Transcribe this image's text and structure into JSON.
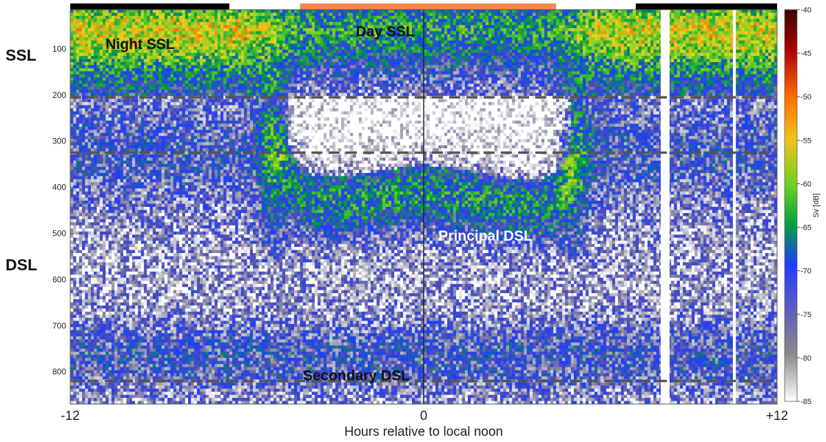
{
  "chart_data": {
    "type": "heatmap",
    "title": "",
    "xlabel": "Hours relative to local noon",
    "ylabel": "",
    "xlim": [
      -12,
      12
    ],
    "ylim": [
      870,
      15
    ],
    "x_ticks": [
      "-12",
      "0",
      "+12"
    ],
    "y_ticks": [
      100,
      200,
      300,
      400,
      500,
      600,
      700,
      800
    ],
    "colorbar": {
      "label": "Sv [dB]",
      "range": [
        -85,
        -40
      ],
      "ticks": [
        -40,
        -45,
        -50,
        -55,
        -60,
        -65,
        -70,
        -75,
        -80,
        -85
      ]
    },
    "reference_depths": [
      205,
      325,
      820
    ],
    "period_bars": [
      {
        "period": "night",
        "start": -12,
        "end": -6.6,
        "color": "#000000"
      },
      {
        "period": "day",
        "start": -4.2,
        "end": 4.5,
        "color": "#f4884c"
      },
      {
        "period": "night",
        "start": 7.2,
        "end": 12,
        "color": "#000000"
      }
    ],
    "layer_labels": [
      {
        "text": "SSL"
      },
      {
        "text": "DSL"
      },
      {
        "text": "Night SSL",
        "x": -10.8,
        "y": 90
      },
      {
        "text": "Day SSL",
        "x": -2.3,
        "y": 62
      },
      {
        "text": "Principal DSL",
        "x": 0.5,
        "y": 505
      },
      {
        "text": "Secondary DSL",
        "x": -4.1,
        "y": 808
      }
    ],
    "layers": [
      {
        "name": "SSL",
        "depth_top": 20,
        "depth_bottom": 200
      },
      {
        "name": "Principal DSL",
        "night_depth": 320,
        "day_depth": 520,
        "thickness": 90
      },
      {
        "name": "Secondary DSL",
        "depth": 770,
        "thickness": 60
      }
    ],
    "data_gaps": [
      [
        8.05,
        8.35
      ],
      [
        10.5,
        10.6
      ]
    ]
  }
}
